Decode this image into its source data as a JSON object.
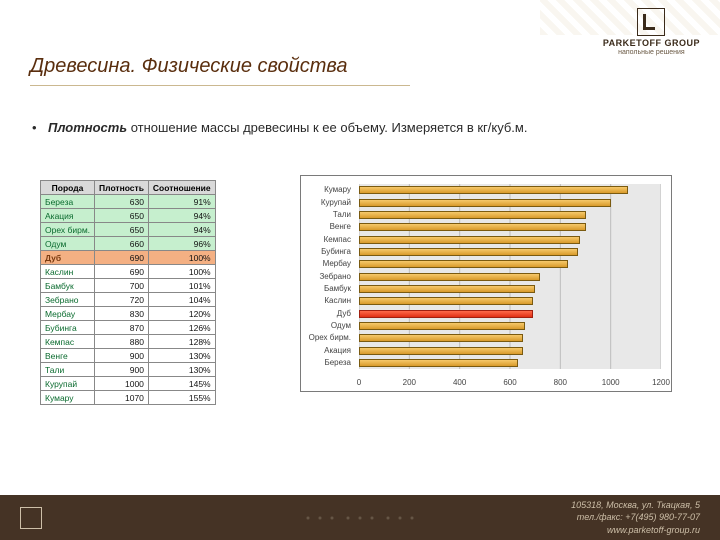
{
  "brand": {
    "name": "PARKETOFF GROUP",
    "sub": "напольные решения"
  },
  "title": "Древесина. Физические свойства",
  "bullet": {
    "term": "Плотность",
    "rest": " отношение массы древесины к ее объему. Измеряется в кг/куб.м."
  },
  "table": {
    "headers": [
      "Порода",
      "Плотность",
      "Соотношение"
    ],
    "rows": [
      {
        "name": "Береза",
        "density": 630,
        "ratio": "91%",
        "cls": "green"
      },
      {
        "name": "Акация",
        "density": 650,
        "ratio": "94%",
        "cls": "green"
      },
      {
        "name": "Орех бирм.",
        "density": 650,
        "ratio": "94%",
        "cls": "green"
      },
      {
        "name": "Одум",
        "density": 660,
        "ratio": "96%",
        "cls": "green"
      },
      {
        "name": "Дуб",
        "density": 690,
        "ratio": "100%",
        "cls": "hl"
      },
      {
        "name": "Каслин",
        "density": 690,
        "ratio": "100%",
        "cls": ""
      },
      {
        "name": "Бамбук",
        "density": 700,
        "ratio": "101%",
        "cls": ""
      },
      {
        "name": "Зебрано",
        "density": 720,
        "ratio": "104%",
        "cls": ""
      },
      {
        "name": "Мербау",
        "density": 830,
        "ratio": "120%",
        "cls": ""
      },
      {
        "name": "Бубинга",
        "density": 870,
        "ratio": "126%",
        "cls": ""
      },
      {
        "name": "Кемпас",
        "density": 880,
        "ratio": "128%",
        "cls": ""
      },
      {
        "name": "Венге",
        "density": 900,
        "ratio": "130%",
        "cls": ""
      },
      {
        "name": "Тали",
        "density": 900,
        "ratio": "130%",
        "cls": ""
      },
      {
        "name": "Курупай",
        "density": 1000,
        "ratio": "145%",
        "cls": ""
      },
      {
        "name": "Кумару",
        "density": 1070,
        "ratio": "155%",
        "cls": ""
      }
    ]
  },
  "chart": {
    "type": "bar",
    "xmin": 0,
    "xmax": 1200,
    "xtick_step": 200,
    "xticks": [
      0,
      200,
      400,
      600,
      800,
      1000,
      1200
    ],
    "bar_color": "#e0a838",
    "bar_border": "#7a5a10",
    "highlight_color": "#e84020",
    "highlight_border": "#a02010",
    "plot_bg": "#e8e8e8",
    "grid_color": "#bdbdbd",
    "label_fontsize": 8,
    "categories": [
      {
        "label": "Кумару",
        "value": 1070,
        "hl": false
      },
      {
        "label": "Курупай",
        "value": 1000,
        "hl": false
      },
      {
        "label": "Тали",
        "value": 900,
        "hl": false
      },
      {
        "label": "Венге",
        "value": 900,
        "hl": false
      },
      {
        "label": "Кемпас",
        "value": 880,
        "hl": false
      },
      {
        "label": "Бубинга",
        "value": 870,
        "hl": false
      },
      {
        "label": "Мербау",
        "value": 830,
        "hl": false
      },
      {
        "label": "Зебрано",
        "value": 720,
        "hl": false
      },
      {
        "label": "Бамбук",
        "value": 700,
        "hl": false
      },
      {
        "label": "Каслин",
        "value": 690,
        "hl": false
      },
      {
        "label": "Дуб",
        "value": 690,
        "hl": true
      },
      {
        "label": "Одум",
        "value": 660,
        "hl": false
      },
      {
        "label": "Орех бирм.",
        "value": 650,
        "hl": false
      },
      {
        "label": "Акация",
        "value": 650,
        "hl": false
      },
      {
        "label": "Береза",
        "value": 630,
        "hl": false
      }
    ]
  },
  "footer": {
    "address": "105318, Москва, ул. Ткацкая, 5",
    "phone": "тел./факс: +7(495) 980-77-07",
    "site": "www.parketoff-group.ru"
  }
}
